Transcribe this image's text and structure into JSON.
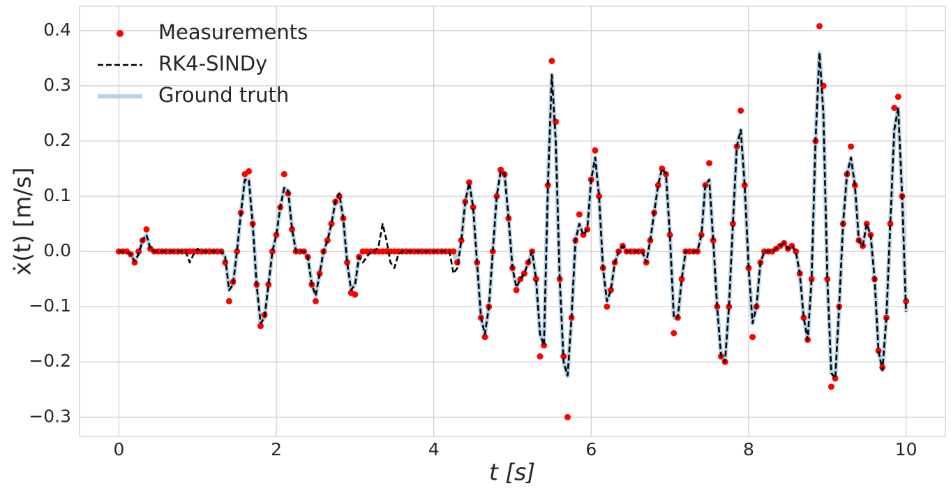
{
  "chart_data": {
    "type": "line",
    "xlabel": "t [s]",
    "ylabel": "ẋ(t) [m/s]",
    "xlim": [
      -0.5,
      10.5
    ],
    "ylim": [
      -0.335,
      0.444
    ],
    "xticks": [
      0,
      2,
      4,
      6,
      8,
      10
    ],
    "yticks": [
      {
        "value": -0.3,
        "label": "−0.3"
      },
      {
        "value": -0.2,
        "label": "−0.2"
      },
      {
        "value": -0.1,
        "label": "−0.1"
      },
      {
        "value": 0,
        "label": "0.0"
      },
      0.1,
      0.2,
      0.3,
      0.4
    ],
    "grid": true,
    "legend": "upper left",
    "x": [
      0,
      0.05,
      0.1,
      0.15,
      0.2,
      0.25,
      0.3,
      0.35,
      0.4,
      0.45,
      0.5,
      0.55,
      0.6,
      0.65,
      0.7,
      0.75,
      0.8,
      0.85,
      0.9,
      0.95,
      1,
      1.05,
      1.1,
      1.15,
      1.2,
      1.25,
      1.3,
      1.35,
      1.4,
      1.45,
      1.5,
      1.55,
      1.6,
      1.65,
      1.7,
      1.75,
      1.8,
      1.85,
      1.9,
      1.95,
      2,
      2.05,
      2.1,
      2.15,
      2.2,
      2.25,
      2.3,
      2.35,
      2.4,
      2.45,
      2.5,
      2.55,
      2.6,
      2.65,
      2.7,
      2.75,
      2.8,
      2.85,
      2.9,
      2.95,
      3,
      3.05,
      3.1,
      3.15,
      3.2,
      3.25,
      3.3,
      3.35,
      3.4,
      3.45,
      3.5,
      3.55,
      3.6,
      3.65,
      3.7,
      3.75,
      3.8,
      3.85,
      3.9,
      3.95,
      4,
      4.05,
      4.1,
      4.15,
      4.2,
      4.25,
      4.3,
      4.35,
      4.4,
      4.45,
      4.5,
      4.55,
      4.6,
      4.65,
      4.7,
      4.75,
      4.8,
      4.85,
      4.9,
      4.95,
      5,
      5.05,
      5.1,
      5.15,
      5.2,
      5.25,
      5.3,
      5.35,
      5.4,
      5.45,
      5.5,
      5.55,
      5.6,
      5.65,
      5.7,
      5.75,
      5.8,
      5.85,
      5.9,
      5.95,
      6,
      6.05,
      6.1,
      6.15,
      6.2,
      6.25,
      6.3,
      6.35,
      6.4,
      6.45,
      6.5,
      6.55,
      6.6,
      6.65,
      6.7,
      6.75,
      6.8,
      6.85,
      6.9,
      6.95,
      7,
      7.05,
      7.1,
      7.15,
      7.2,
      7.25,
      7.3,
      7.35,
      7.4,
      7.45,
      7.5,
      7.55,
      7.6,
      7.65,
      7.7,
      7.75,
      7.8,
      7.85,
      7.9,
      7.95,
      8,
      8.05,
      8.1,
      8.15,
      8.2,
      8.25,
      8.3,
      8.35,
      8.4,
      8.45,
      8.5,
      8.55,
      8.6,
      8.65,
      8.7,
      8.75,
      8.8,
      8.85,
      8.9,
      8.95,
      9,
      9.05,
      9.1,
      9.15,
      9.2,
      9.25,
      9.3,
      9.35,
      9.4,
      9.45,
      9.5,
      9.55,
      9.6,
      9.65,
      9.7,
      9.75,
      9.8,
      9.85,
      9.9,
      9.95,
      10
    ],
    "series": [
      {
        "name": "Ground truth",
        "kind": "line",
        "color": "#a9cce3",
        "values": [
          0,
          0,
          0,
          -0.005,
          -0.018,
          -0.005,
          0.02,
          0.03,
          0.005,
          0,
          0,
          0,
          0,
          0,
          0,
          0,
          0,
          0,
          0,
          0,
          0,
          0,
          0,
          0,
          0,
          0,
          0,
          -0.01,
          -0.07,
          -0.06,
          0,
          0.07,
          0.13,
          0.13,
          0.05,
          -0.06,
          -0.13,
          -0.12,
          -0.06,
          0,
          0.03,
          0.08,
          0.115,
          0.11,
          0.04,
          0,
          0,
          0,
          -0.01,
          -0.06,
          -0.08,
          -0.04,
          0,
          0.02,
          0.05,
          0.09,
          0.105,
          0.06,
          -0.02,
          -0.07,
          -0.06,
          -0.01,
          0,
          0,
          0,
          0,
          0,
          0,
          0,
          0,
          0,
          0,
          0,
          0,
          0,
          0,
          0,
          0,
          0,
          0,
          0,
          0,
          0,
          0,
          0,
          0,
          -0.02,
          0.02,
          0.09,
          0.125,
          0.08,
          -0.02,
          -0.12,
          -0.15,
          -0.1,
          0,
          0.1,
          0.145,
          0.14,
          0.06,
          -0.03,
          -0.065,
          -0.05,
          -0.04,
          -0.02,
          0,
          -0.05,
          -0.15,
          -0.17,
          0.12,
          0.32,
          0.2,
          -0.05,
          -0.2,
          -0.225,
          -0.12,
          0.02,
          0.05,
          0.03,
          0.04,
          0.13,
          0.17,
          0.1,
          -0.03,
          -0.09,
          -0.07,
          -0.02,
          0,
          0.01,
          0,
          0,
          0,
          0,
          0,
          -0.02,
          0.02,
          0.07,
          0.12,
          0.15,
          0.14,
          0.03,
          -0.12,
          -0.12,
          -0.05,
          0,
          0,
          0,
          0,
          0.03,
          0.12,
          0.13,
          0.02,
          -0.1,
          -0.19,
          -0.2,
          -0.1,
          0.05,
          0.19,
          0.22,
          0.12,
          -0.03,
          -0.13,
          -0.1,
          -0.02,
          0,
          0,
          0,
          0.005,
          0.01,
          0.015,
          0.005,
          0.01,
          0,
          -0.04,
          -0.12,
          -0.16,
          -0.05,
          0.2,
          0.36,
          0.25,
          -0.05,
          -0.22,
          -0.23,
          -0.1,
          0.05,
          0.14,
          0.17,
          0.12,
          0.02,
          0.01,
          0.05,
          0.03,
          -0.05,
          -0.18,
          -0.215,
          -0.12,
          0.05,
          0.22,
          0.26,
          0.1,
          -0.11
        ]
      },
      {
        "name": "Measurements",
        "kind": "scatter",
        "color": "#ff0000",
        "values": [
          0,
          0,
          0,
          -0.005,
          -0.02,
          0,
          0.02,
          0.04,
          0.005,
          0,
          0,
          0,
          0,
          0,
          0,
          0,
          0,
          0,
          0,
          0,
          0,
          0,
          0,
          0,
          0,
          0,
          0,
          -0.02,
          -0.09,
          -0.055,
          0,
          0.07,
          0.14,
          0.145,
          0.05,
          -0.06,
          -0.135,
          -0.115,
          -0.06,
          0,
          0.03,
          0.08,
          0.14,
          0.105,
          0.04,
          0,
          0,
          0,
          -0.01,
          -0.06,
          -0.09,
          -0.04,
          0,
          0.02,
          0.05,
          0.09,
          0.1,
          0.06,
          -0.02,
          -0.075,
          -0.078,
          -0.01,
          0,
          0,
          0,
          0,
          0,
          0,
          0,
          0,
          0,
          0,
          0,
          0,
          0,
          0,
          0,
          0,
          0,
          0,
          0,
          0,
          0,
          0,
          0,
          0,
          -0.02,
          0.02,
          0.09,
          0.125,
          0.08,
          -0.02,
          -0.12,
          -0.155,
          -0.1,
          0,
          0.1,
          0.148,
          0.14,
          0.06,
          -0.03,
          -0.07,
          -0.05,
          -0.04,
          -0.02,
          0,
          -0.05,
          -0.19,
          -0.17,
          0.12,
          0.345,
          0.235,
          -0.05,
          -0.19,
          -0.3,
          -0.12,
          0.02,
          0.067,
          0.03,
          0.04,
          0.13,
          0.183,
          0.1,
          -0.03,
          -0.1,
          -0.07,
          -0.02,
          0,
          0.01,
          0,
          0,
          0,
          0,
          0,
          -0.02,
          0.02,
          0.07,
          0.12,
          0.15,
          0.14,
          0.03,
          -0.148,
          -0.12,
          -0.05,
          0,
          0,
          0,
          0,
          0.03,
          0.12,
          0.16,
          0.02,
          -0.1,
          -0.19,
          -0.2,
          -0.1,
          0.05,
          0.19,
          0.255,
          0.12,
          -0.03,
          -0.155,
          -0.1,
          -0.02,
          0,
          0,
          0,
          0.005,
          0.01,
          0.015,
          0.005,
          0.01,
          0,
          -0.04,
          -0.12,
          -0.16,
          -0.05,
          0.2,
          0.408,
          0.3,
          -0.05,
          -0.245,
          -0.23,
          -0.1,
          0.05,
          0.14,
          0.19,
          0.12,
          0.02,
          0.01,
          0.05,
          0.03,
          -0.05,
          -0.18,
          -0.21,
          -0.12,
          0.05,
          0.26,
          0.28,
          0.1,
          -0.09
        ]
      },
      {
        "name": "RK4-SINDy",
        "kind": "line",
        "dash": true,
        "color": "#000000",
        "values": [
          0,
          0,
          0,
          -0.005,
          -0.018,
          -0.005,
          0.02,
          0.03,
          0.005,
          0,
          0,
          0,
          0,
          0,
          0,
          0,
          0,
          0,
          -0.02,
          -0.005,
          0.005,
          0,
          0,
          0,
          0,
          0,
          0,
          -0.01,
          -0.07,
          -0.06,
          0,
          0.07,
          0.13,
          0.13,
          0.05,
          -0.06,
          -0.13,
          -0.12,
          -0.06,
          0,
          0.03,
          0.08,
          0.115,
          0.11,
          0.04,
          0,
          0,
          0,
          -0.01,
          -0.06,
          -0.08,
          -0.04,
          0,
          0.02,
          0.05,
          0.09,
          0.105,
          0.06,
          -0.02,
          -0.07,
          -0.06,
          -0.01,
          -0.02,
          -0.01,
          0,
          0,
          0.01,
          0.05,
          0.02,
          -0.02,
          -0.03,
          -0.005,
          0,
          0,
          0,
          0,
          0,
          0,
          0,
          0,
          0,
          0,
          0,
          0,
          0,
          -0.04,
          -0.03,
          0.02,
          0.09,
          0.125,
          0.08,
          -0.02,
          -0.12,
          -0.15,
          -0.1,
          0,
          0.1,
          0.145,
          0.14,
          0.06,
          -0.03,
          -0.065,
          -0.05,
          -0.04,
          -0.02,
          0,
          -0.05,
          -0.15,
          -0.17,
          0.12,
          0.32,
          0.2,
          -0.05,
          -0.2,
          -0.225,
          -0.12,
          0.02,
          0.05,
          0.03,
          0.04,
          0.13,
          0.17,
          0.1,
          -0.03,
          -0.09,
          -0.07,
          -0.02,
          0,
          0.01,
          0,
          0,
          0,
          0,
          0,
          -0.02,
          0.02,
          0.07,
          0.12,
          0.15,
          0.14,
          0.03,
          -0.12,
          -0.12,
          -0.05,
          0,
          0,
          0,
          0,
          0.03,
          0.12,
          0.13,
          0.02,
          -0.1,
          -0.19,
          -0.2,
          -0.1,
          0.05,
          0.19,
          0.22,
          0.12,
          -0.03,
          -0.13,
          -0.1,
          -0.02,
          0,
          0,
          0,
          0.005,
          0.01,
          0.015,
          0.005,
          0.01,
          0,
          -0.04,
          -0.12,
          -0.16,
          -0.05,
          0.2,
          0.36,
          0.25,
          -0.05,
          -0.22,
          -0.23,
          -0.1,
          0.05,
          0.14,
          0.17,
          0.12,
          0.02,
          0.01,
          0.05,
          0.03,
          -0.05,
          -0.18,
          -0.215,
          -0.12,
          0.05,
          0.22,
          0.26,
          0.1,
          -0.11
        ]
      }
    ]
  }
}
